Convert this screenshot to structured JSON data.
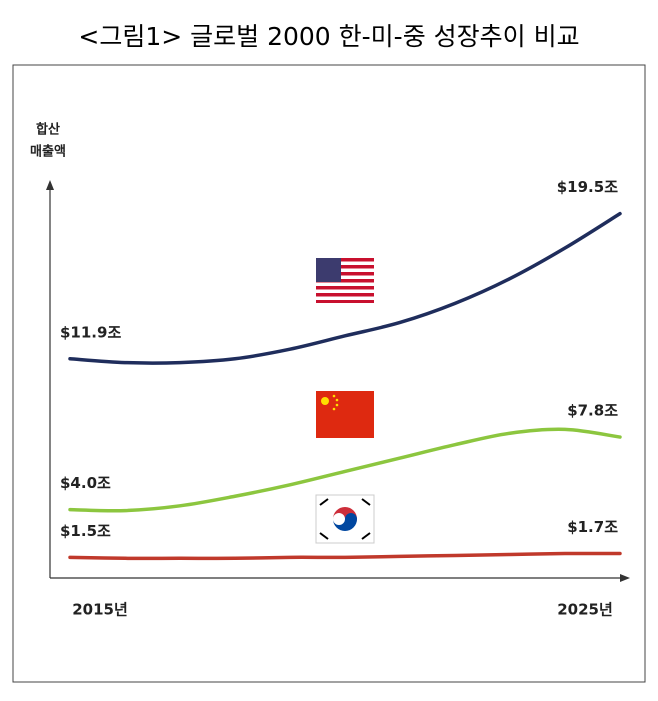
{
  "chart_data": {
    "type": "line",
    "title": "<그림1> 글로벌 2000 한-미-중 성장추이 비교",
    "y_label": [
      "합산",
      "매출액"
    ],
    "categories": [
      "2015년",
      null,
      null,
      null,
      null,
      null,
      null,
      null,
      null,
      null,
      "2025년"
    ],
    "ylim": [
      0,
      21
    ],
    "series": [
      {
        "name": "미국",
        "color": "#1f2d5c",
        "values": [
          11.9,
          11.7,
          11.7,
          11.9,
          12.4,
          13.1,
          13.8,
          14.8,
          16.1,
          17.7,
          19.5
        ],
        "value_labels": [
          "$11.9조",
          null,
          null,
          null,
          null,
          null,
          null,
          null,
          null,
          null,
          "$19.5조"
        ]
      },
      {
        "name": "중국",
        "color": "#8cc63f",
        "values": [
          4.0,
          3.95,
          4.2,
          4.7,
          5.3,
          6.0,
          6.7,
          7.4,
          8.0,
          8.2,
          7.8
        ],
        "value_labels": [
          "$4.0조",
          null,
          null,
          null,
          null,
          null,
          null,
          null,
          null,
          null,
          "$7.8조"
        ]
      },
      {
        "name": "한국",
        "color": "#c0392b",
        "values": [
          1.5,
          1.45,
          1.45,
          1.45,
          1.5,
          1.5,
          1.55,
          1.6,
          1.65,
          1.7,
          1.7
        ],
        "value_labels": [
          "$1.5조",
          null,
          null,
          null,
          null,
          null,
          null,
          null,
          null,
          null,
          "$1.7조"
        ]
      }
    ]
  }
}
